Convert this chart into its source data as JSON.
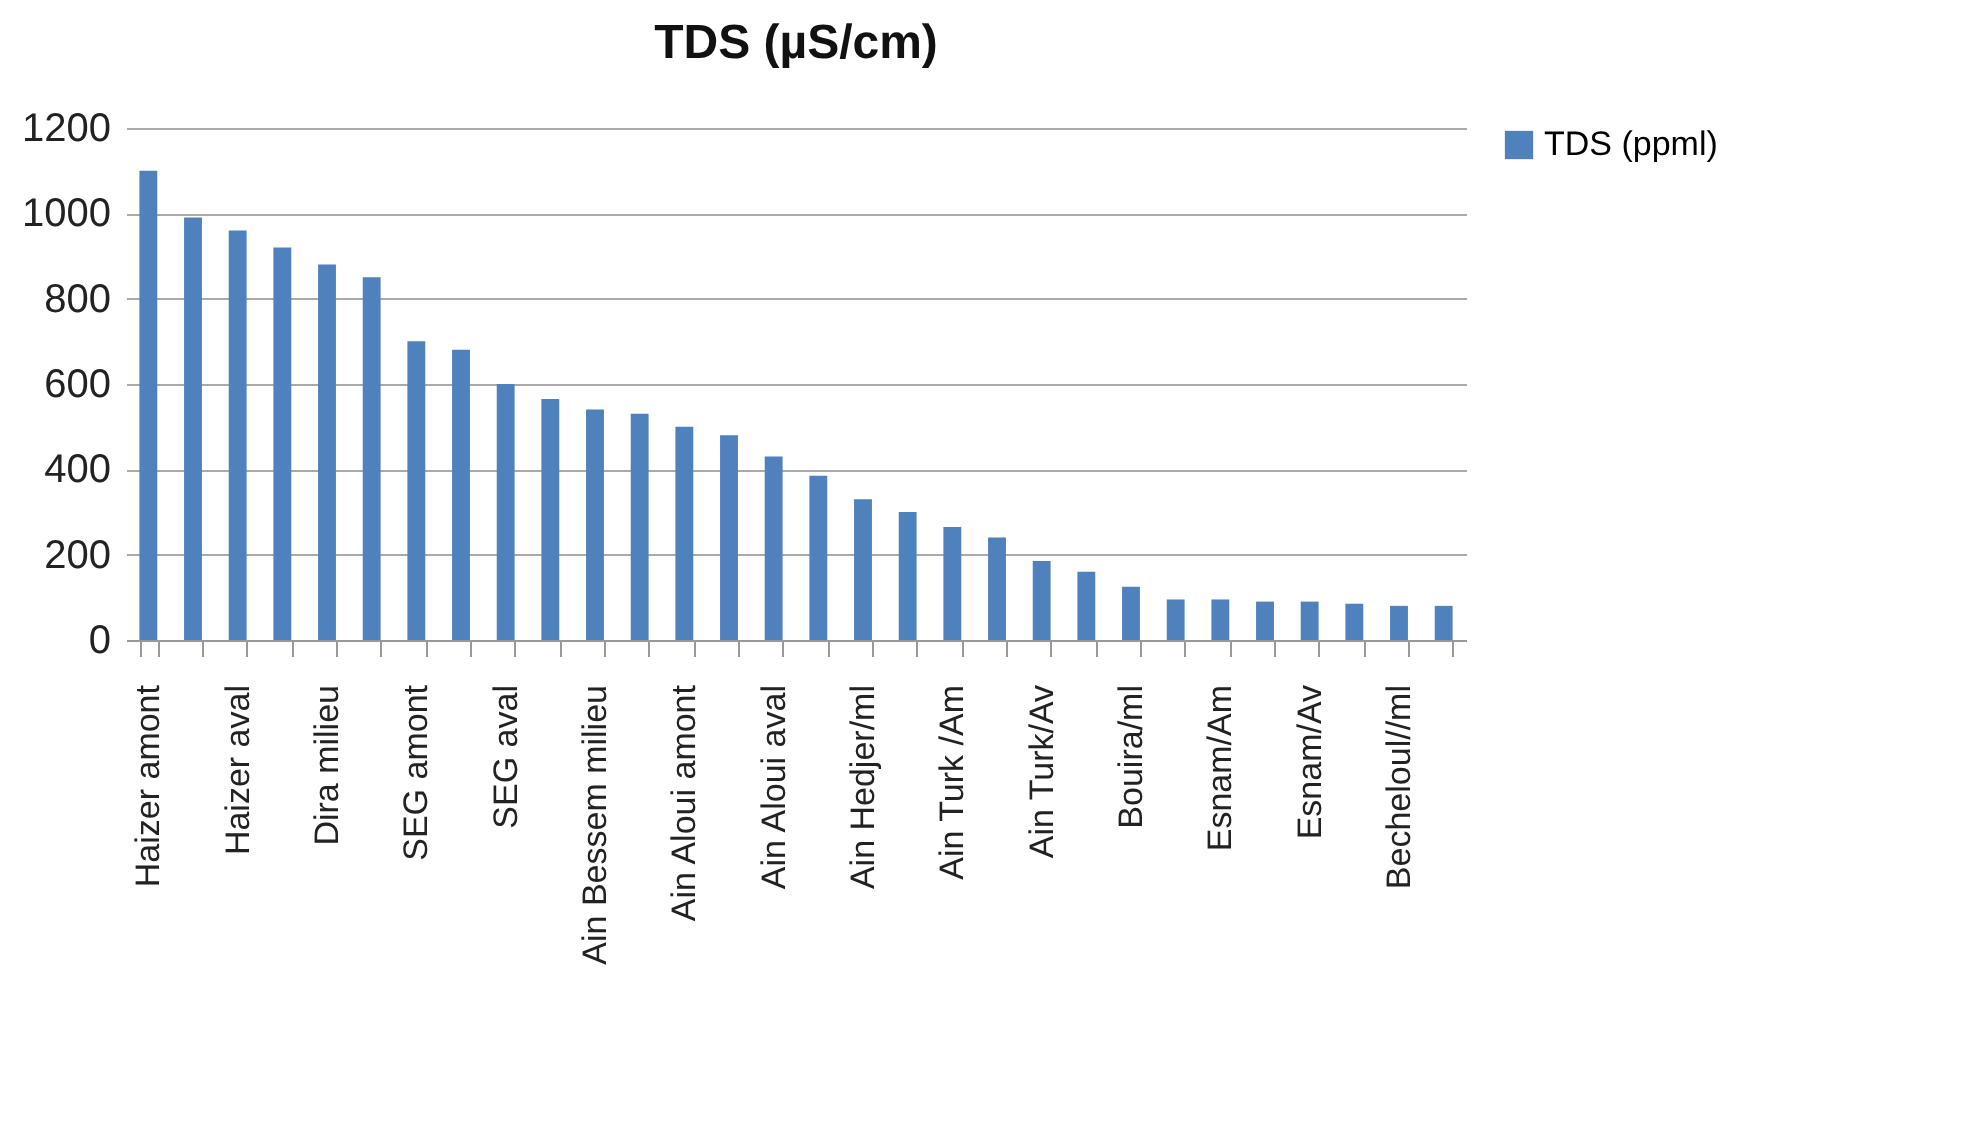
{
  "chart_data": {
    "type": "bar",
    "title": "TDS (µS/cm)",
    "categories": [
      "Haizer amont",
      null,
      "Haizer aval",
      null,
      "Dira milieu",
      null,
      "SEG amont",
      null,
      "SEG aval",
      null,
      "Ain Bessem  milieu",
      null,
      "Ain Aloui amont",
      null,
      "Ain Aloui aval",
      null,
      "Ain Hedjer/ml",
      null,
      "Ain Turk /Am",
      null,
      "Ain Turk/Av",
      null,
      "Bouira/ml",
      null,
      "Esnam/Am",
      null,
      "Esnam/Av",
      null,
      "Becheloul//ml",
      null
    ],
    "series": [
      {
        "name": "TDS (ppml)",
        "color": "#4f81bd",
        "values": [
          1100,
          990,
          960,
          920,
          880,
          850,
          700,
          680,
          600,
          565,
          540,
          530,
          500,
          480,
          430,
          385,
          330,
          300,
          265,
          240,
          185,
          160,
          125,
          95,
          95,
          90,
          90,
          85,
          80,
          80
        ]
      }
    ],
    "ylim": [
      0,
      1200
    ],
    "yticks": [
      0,
      200,
      400,
      600,
      800,
      1000,
      1200
    ],
    "grid": "y",
    "legend": "right"
  }
}
